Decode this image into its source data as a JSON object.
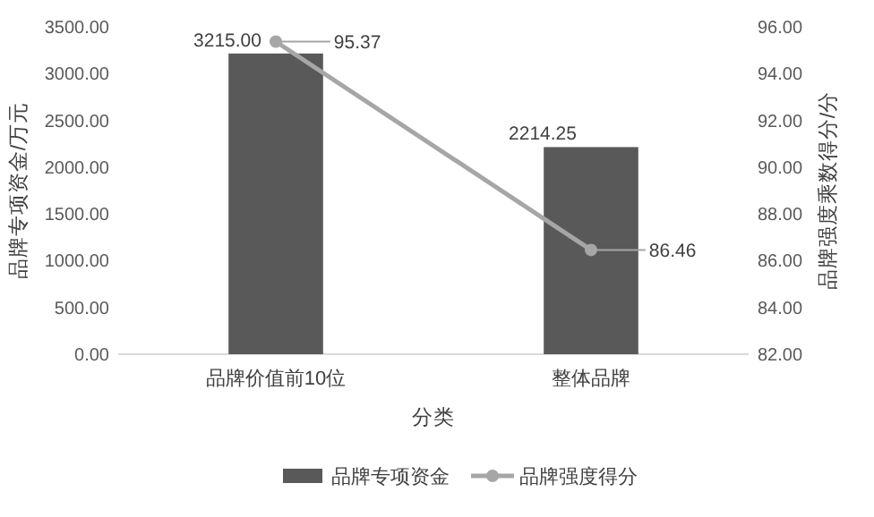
{
  "chart_data": {
    "type": "bar",
    "xlabel": "分类",
    "ylabel": "品牌专项资金/万元",
    "y2label": "品牌强度乘数得分/分",
    "categories": [
      "品牌价值前10位",
      "整体品牌"
    ],
    "series": [
      {
        "name": "品牌专项资金",
        "color": "#595959",
        "values": [
          3215.0,
          2214.25
        ],
        "value_labels": [
          "3215.00",
          "2214.25"
        ]
      },
      {
        "name": "品牌强度得分",
        "type": "line",
        "axis": "y2",
        "color": "#a6a6a6",
        "marker": "circle",
        "values": [
          95.37,
          86.46
        ],
        "value_labels": [
          "95.37",
          "86.46"
        ]
      }
    ],
    "ylim": [
      0,
      3500
    ],
    "yticks": [
      {
        "value": 0,
        "label": "0.00"
      },
      {
        "value": 500,
        "label": "500.00"
      },
      {
        "value": 1000,
        "label": "1000.00"
      },
      {
        "value": 1500,
        "label": "1500.00"
      },
      {
        "value": 2000,
        "label": "2000.00"
      },
      {
        "value": 2500,
        "label": "2500.00"
      },
      {
        "value": 3000,
        "label": "3000.00"
      },
      {
        "value": 3500,
        "label": "3500.00"
      }
    ],
    "y2lim": [
      82,
      96
    ],
    "y2ticks": [
      {
        "value": 82,
        "label": "82.00"
      },
      {
        "value": 84,
        "label": "84.00"
      },
      {
        "value": 86,
        "label": "86.00"
      },
      {
        "value": 88,
        "label": "88.00"
      },
      {
        "value": 90,
        "label": "90.00"
      },
      {
        "value": 92,
        "label": "92.00"
      },
      {
        "value": 94,
        "label": "94.00"
      },
      {
        "value": 96,
        "label": "96.00"
      }
    ],
    "grid": false,
    "legend": "bottom"
  }
}
